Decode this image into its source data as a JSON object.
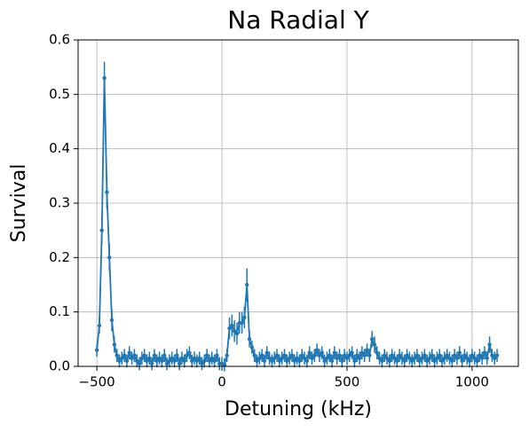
{
  "chart_data": {
    "type": "errorline",
    "title": "Na Radial Y",
    "x_label": "Detuning (kHz)",
    "y_label": "Survival",
    "color": "#1f77b4",
    "grid": true,
    "xlim": [
      -575,
      1185
    ],
    "ylim": [
      0,
      0.6
    ],
    "xticks": [
      {
        "value": -500,
        "label": "−500"
      },
      0,
      500,
      1000
    ],
    "yticks": [
      {
        "value": 0,
        "label": "0.0"
      },
      0.1,
      0.2,
      0.3,
      0.4,
      0.5,
      0.6
    ],
    "x": [
      -500,
      -490,
      -480,
      -470,
      -460,
      -450,
      -440,
      -430,
      -420,
      -410,
      -400,
      -390,
      -380,
      -370,
      -360,
      -350,
      -340,
      -330,
      -320,
      -310,
      -300,
      -290,
      -280,
      -270,
      -260,
      -250,
      -240,
      -230,
      -220,
      -210,
      -200,
      -190,
      -180,
      -170,
      -160,
      -150,
      -140,
      -130,
      -120,
      -110,
      -100,
      -90,
      -80,
      -70,
      -60,
      -50,
      -40,
      -30,
      -20,
      -10,
      0,
      10,
      20,
      30,
      40,
      50,
      60,
      70,
      80,
      90,
      100,
      110,
      120,
      130,
      140,
      150,
      160,
      170,
      180,
      190,
      200,
      210,
      220,
      230,
      240,
      250,
      260,
      270,
      280,
      290,
      300,
      310,
      320,
      330,
      340,
      350,
      360,
      370,
      380,
      390,
      400,
      410,
      420,
      430,
      440,
      450,
      460,
      470,
      480,
      490,
      500,
      510,
      520,
      530,
      540,
      550,
      560,
      570,
      580,
      590,
      600,
      610,
      620,
      630,
      640,
      650,
      660,
      670,
      680,
      690,
      700,
      710,
      720,
      730,
      740,
      750,
      760,
      770,
      780,
      790,
      800,
      810,
      820,
      830,
      840,
      850,
      860,
      870,
      880,
      890,
      900,
      910,
      920,
      930,
      940,
      950,
      960,
      970,
      980,
      990,
      1000,
      1010,
      1020,
      1030,
      1040,
      1050,
      1060,
      1070,
      1080,
      1090,
      1100
    ],
    "values": [
      0.03,
      0.075,
      0.25,
      0.53,
      0.32,
      0.2,
      0.085,
      0.04,
      0.02,
      0.01,
      0.015,
      0.02,
      0.01,
      0.025,
      0.015,
      0.02,
      0.01,
      0.005,
      0.015,
      0.02,
      0.01,
      0.015,
      0.005,
      0.02,
      0.01,
      0.015,
      0.01,
      0.02,
      0.005,
      0.01,
      0.015,
      0.01,
      0.02,
      0.005,
      0.015,
      0.01,
      0.02,
      0.025,
      0.01,
      0.015,
      0.01,
      0.015,
      0.005,
      0.01,
      0.02,
      0.01,
      0.015,
      0.01,
      0.02,
      0.005,
      0.005,
      0.003,
      0.02,
      0.07,
      0.075,
      0.065,
      0.06,
      0.08,
      0.08,
      0.09,
      0.15,
      0.05,
      0.035,
      0.02,
      0.01,
      0.015,
      0.02,
      0.01,
      0.025,
      0.015,
      0.01,
      0.015,
      0.02,
      0.01,
      0.015,
      0.02,
      0.01,
      0.015,
      0.02,
      0.01,
      0.015,
      0.01,
      0.02,
      0.015,
      0.01,
      0.025,
      0.015,
      0.02,
      0.03,
      0.02,
      0.025,
      0.01,
      0.015,
      0.02,
      0.01,
      0.025,
      0.015,
      0.02,
      0.01,
      0.02,
      0.015,
      0.02,
      0.025,
      0.01,
      0.02,
      0.015,
      0.025,
      0.02,
      0.03,
      0.02,
      0.05,
      0.04,
      0.025,
      0.015,
      0.01,
      0.02,
      0.015,
      0.01,
      0.02,
      0.015,
      0.01,
      0.02,
      0.015,
      0.01,
      0.02,
      0.015,
      0.01,
      0.015,
      0.02,
      0.01,
      0.015,
      0.02,
      0.01,
      0.015,
      0.02,
      0.01,
      0.015,
      0.02,
      0.01,
      0.015,
      0.02,
      0.015,
      0.01,
      0.02,
      0.015,
      0.025,
      0.01,
      0.02,
      0.015,
      0.01,
      0.02,
      0.015,
      0.01,
      0.02,
      0.015,
      0.025,
      0.015,
      0.04,
      0.02,
      0.015,
      0.02
    ],
    "errors": [
      0.012,
      0.015,
      0.025,
      0.03,
      0.03,
      0.025,
      0.02,
      0.015,
      0.012,
      0.012,
      0.012,
      0.012,
      0.012,
      0.012,
      0.012,
      0.012,
      0.012,
      0.012,
      0.012,
      0.012,
      0.012,
      0.012,
      0.012,
      0.012,
      0.012,
      0.012,
      0.012,
      0.012,
      0.012,
      0.012,
      0.012,
      0.012,
      0.012,
      0.012,
      0.012,
      0.012,
      0.012,
      0.012,
      0.012,
      0.012,
      0.012,
      0.012,
      0.012,
      0.012,
      0.012,
      0.012,
      0.012,
      0.012,
      0.012,
      0.012,
      0.012,
      0.012,
      0.012,
      0.02,
      0.02,
      0.02,
      0.02,
      0.02,
      0.02,
      0.02,
      0.03,
      0.015,
      0.012,
      0.012,
      0.012,
      0.012,
      0.012,
      0.012,
      0.012,
      0.012,
      0.012,
      0.012,
      0.012,
      0.012,
      0.012,
      0.012,
      0.012,
      0.012,
      0.012,
      0.012,
      0.012,
      0.012,
      0.012,
      0.012,
      0.012,
      0.012,
      0.012,
      0.012,
      0.012,
      0.012,
      0.012,
      0.012,
      0.012,
      0.012,
      0.012,
      0.012,
      0.012,
      0.012,
      0.012,
      0.012,
      0.012,
      0.012,
      0.012,
      0.012,
      0.012,
      0.012,
      0.012,
      0.012,
      0.012,
      0.012,
      0.015,
      0.015,
      0.012,
      0.012,
      0.012,
      0.012,
      0.012,
      0.012,
      0.012,
      0.012,
      0.012,
      0.012,
      0.012,
      0.012,
      0.012,
      0.012,
      0.012,
      0.012,
      0.012,
      0.012,
      0.012,
      0.012,
      0.012,
      0.012,
      0.012,
      0.012,
      0.012,
      0.012,
      0.012,
      0.012,
      0.012,
      0.012,
      0.012,
      0.012,
      0.012,
      0.012,
      0.012,
      0.012,
      0.012,
      0.012,
      0.012,
      0.012,
      0.012,
      0.012,
      0.012,
      0.012,
      0.012,
      0.015,
      0.012,
      0.012,
      0.012
    ]
  }
}
